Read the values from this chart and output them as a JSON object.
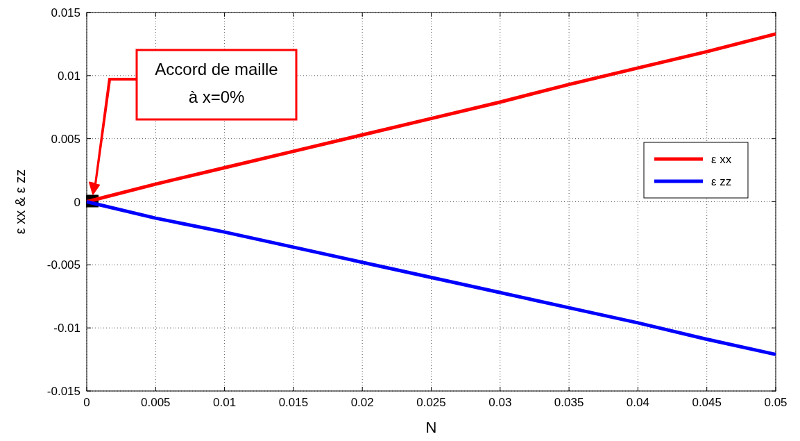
{
  "chart_data": {
    "type": "line",
    "xlabel": "N",
    "ylabel": "ε xx & ε zz",
    "x": [
      0,
      0.005,
      0.01,
      0.015,
      0.02,
      0.025,
      0.03,
      0.035,
      0.04,
      0.045,
      0.05
    ],
    "series": [
      {
        "name": "ε xx",
        "color": "#ff0000",
        "values": [
          0,
          0.0014,
          0.0027,
          0.004,
          0.0053,
          0.0066,
          0.0079,
          0.0093,
          0.0106,
          0.0119,
          0.0133
        ]
      },
      {
        "name": "ε zz",
        "color": "#0000ff",
        "values": [
          0,
          -0.0013,
          -0.0024,
          -0.0036,
          -0.0048,
          -0.006,
          -0.0072,
          -0.0084,
          -0.0096,
          -0.0109,
          -0.0121
        ]
      }
    ],
    "xlim": [
      0,
      0.05
    ],
    "xticks": [
      0,
      0.005,
      0.01,
      0.015,
      0.02,
      0.025,
      0.03,
      0.035,
      0.04,
      0.045,
      0.05
    ],
    "ylim": [
      -0.015,
      0.015
    ],
    "yticks": [
      -0.015,
      -0.01,
      -0.005,
      0,
      0.005,
      0.01,
      0.015
    ],
    "grid": true,
    "legend": "right",
    "marker": "none",
    "line_style": "solid",
    "annotations": [
      "Accord de maille à x=0%"
    ]
  }
}
